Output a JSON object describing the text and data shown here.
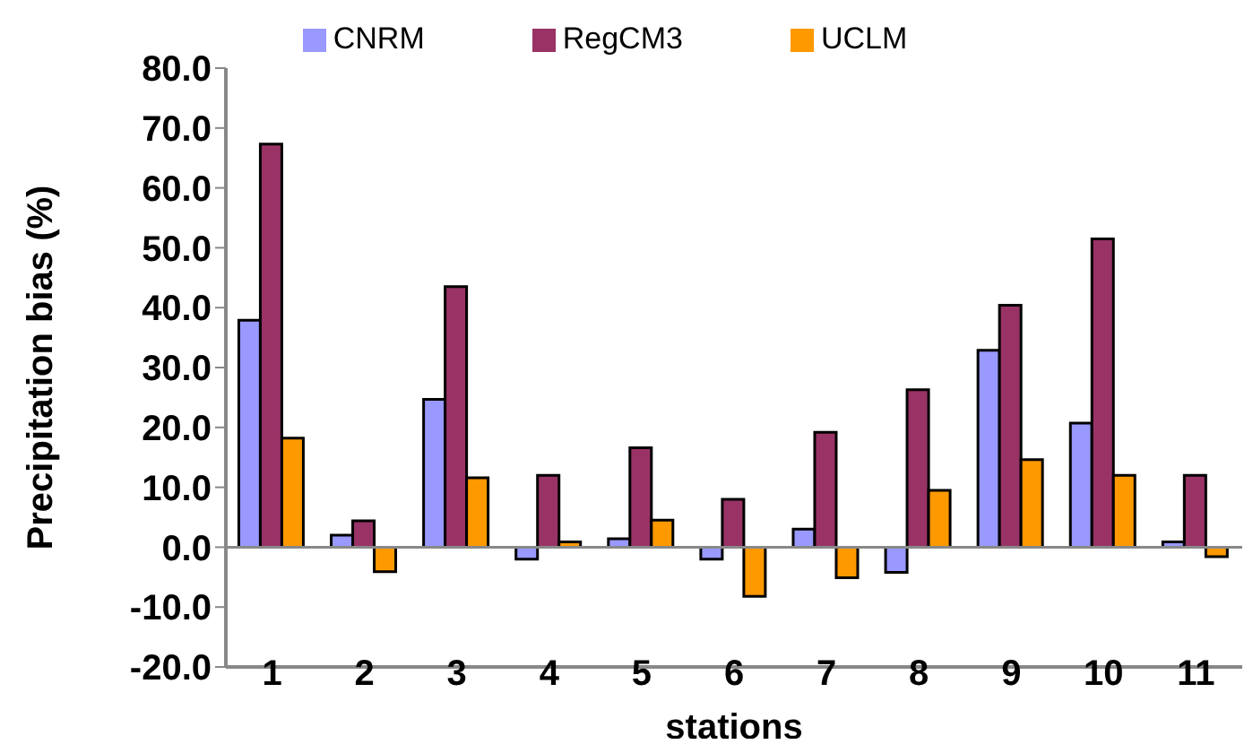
{
  "chart_data": {
    "type": "bar",
    "xlabel": "stations",
    "ylabel": "Precipitation bias (%)",
    "categories": [
      "1",
      "2",
      "3",
      "4",
      "5",
      "6",
      "7",
      "8",
      "9",
      "10",
      "11"
    ],
    "series": [
      {
        "name": "CNRM",
        "color": "#9999ff",
        "values": [
          37.9,
          2.0,
          24.7,
          -2.0,
          1.4,
          -2.0,
          3.0,
          -4.2,
          32.9,
          20.7,
          0.9
        ]
      },
      {
        "name": "RegCM3",
        "color": "#993366",
        "values": [
          67.3,
          4.4,
          43.5,
          12.0,
          16.6,
          8.0,
          19.2,
          26.3,
          40.4,
          51.5,
          12.0
        ]
      },
      {
        "name": "UCLM",
        "color": "#ff9900",
        "values": [
          18.2,
          -4.1,
          11.6,
          0.9,
          4.5,
          -8.2,
          -5.1,
          9.5,
          14.6,
          12.0,
          -1.6
        ]
      }
    ],
    "ylim": [
      -20,
      80
    ],
    "yticks": [
      {
        "value": -20,
        "label": "-20.0"
      },
      {
        "value": -10,
        "label": "-10.0"
      },
      {
        "value": 0,
        "label": "0.0"
      },
      {
        "value": 10,
        "label": "10.0"
      },
      {
        "value": 20,
        "label": "20.0"
      },
      {
        "value": 30,
        "label": "30.0"
      },
      {
        "value": 40,
        "label": "40.0"
      },
      {
        "value": 50,
        "label": "50.0"
      },
      {
        "value": 60,
        "label": "60.0"
      },
      {
        "value": 70,
        "label": "70.0"
      },
      {
        "value": 80,
        "label": "80.0"
      }
    ],
    "ref_lines": [
      {
        "axis": "y",
        "value": 0
      }
    ],
    "grid": false,
    "legend": "top"
  }
}
